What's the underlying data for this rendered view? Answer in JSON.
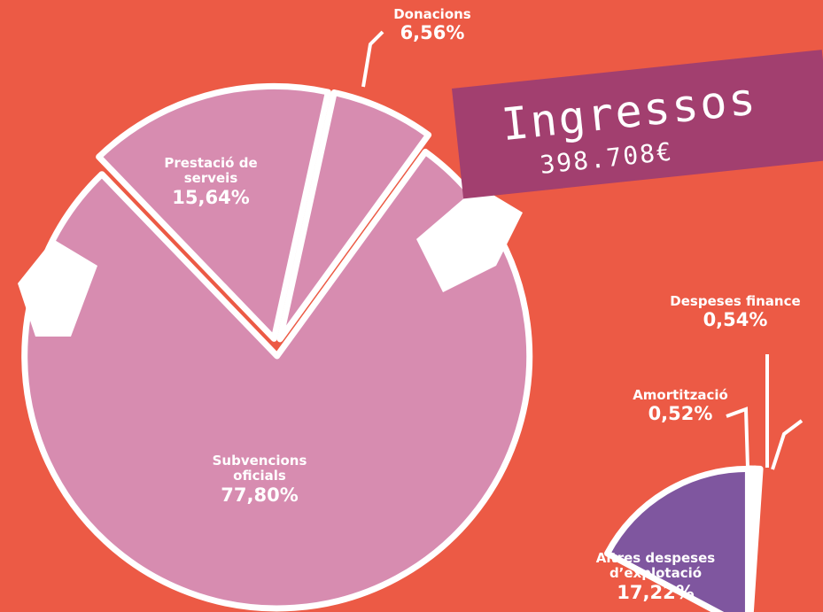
{
  "chart_data": [
    {
      "type": "pie",
      "title": "Ingressos",
      "subtitle": "398.708€",
      "categories": [
        "Subvencions oficials",
        "Prestació de serveis",
        "Donacions"
      ],
      "values": [
        77.8,
        15.64,
        6.56
      ],
      "value_labels": [
        "77,80%",
        "15,64%",
        "6,56%"
      ],
      "color": "#d78cb0"
    },
    {
      "type": "pie",
      "categories": [
        "Altres despeses d’explotació",
        "Amortització",
        "Despeses finance"
      ],
      "values": [
        17.22,
        0.52,
        0.54
      ],
      "value_labels": [
        "17,22%",
        "0,52%",
        "0,54%"
      ],
      "color": "#7f569f"
    }
  ]
}
